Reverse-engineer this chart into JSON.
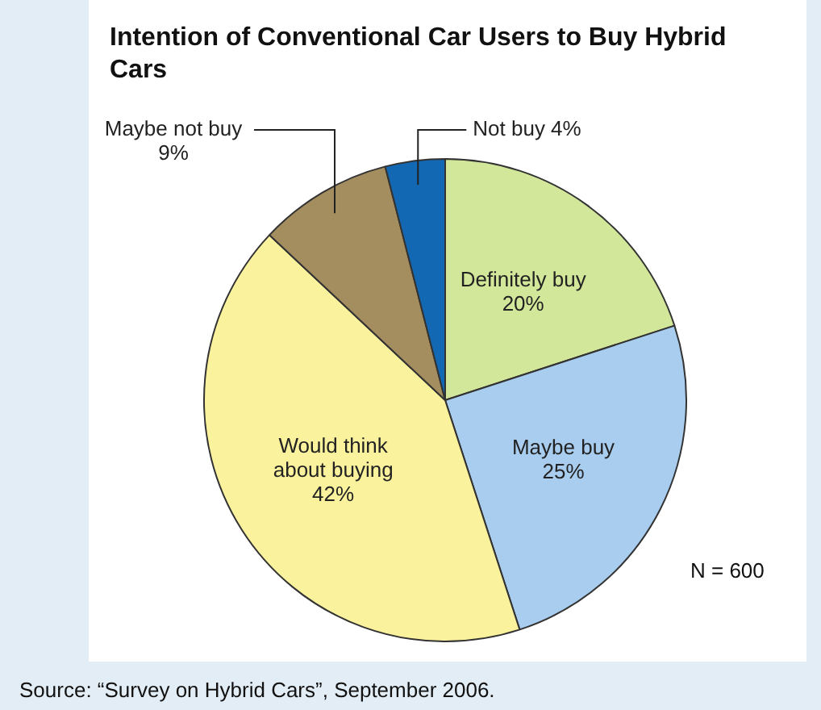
{
  "chart_data": {
    "type": "pie",
    "title": "Intention of Conventional Car Users to Buy Hybrid Cars",
    "categories": [
      "Definitely buy",
      "Maybe buy",
      "Would think about buying",
      "Maybe not buy",
      "Not buy"
    ],
    "values": [
      20,
      25,
      42,
      9,
      4
    ],
    "value_labels": [
      "20%",
      "25%",
      "42%",
      "9%",
      "4%"
    ],
    "colors": [
      "#d3e79a",
      "#a9cdee",
      "#fbf29d",
      "#a48d5e",
      "#1268b3"
    ],
    "legend": false,
    "annotations": [
      "N = 600",
      "Source: “Survey on Hybrid Cars”, September 2006."
    ]
  }
}
